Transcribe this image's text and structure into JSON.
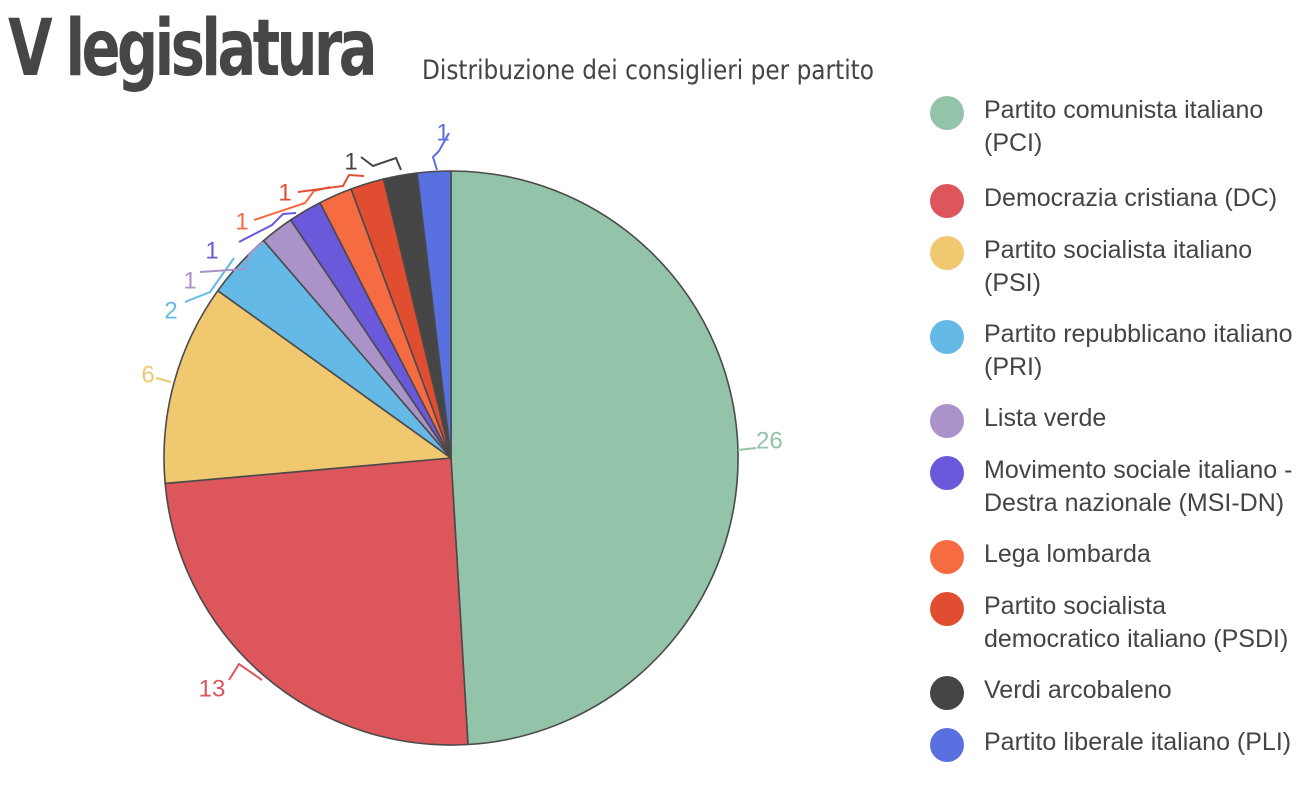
{
  "title": "V legislatura",
  "subtitle": "Distribuzione dei consiglieri per partito",
  "chart_data": {
    "type": "pie",
    "title": "V legislatura",
    "subtitle": "Distribuzione dei consiglieri per partito",
    "legend_position": "right",
    "slices": [
      {
        "label": "Partito comunista italiano (PCI)",
        "value": 26,
        "color": "#93c3a8"
      },
      {
        "label": "Democrazia cristiana (DC)",
        "value": 13,
        "color": "#dc565b"
      },
      {
        "label": "Partito socialista italiano (PSI)",
        "value": 6,
        "color": "#efc870"
      },
      {
        "label": "Partito repubblicano italiano (PRI)",
        "value": 2,
        "color": "#65b9e6"
      },
      {
        "label": "Lista verde",
        "value": 1,
        "color": "#aa93c9"
      },
      {
        "label": "Movimento sociale italiano - Destra nazionale (MSI-DN)",
        "value": 1,
        "color": "#6b59dc"
      },
      {
        "label": "Lega lombarda",
        "value": 1,
        "color": "#f76b43"
      },
      {
        "label": "Partito socialista democratico italiano (PSDI)",
        "value": 1,
        "color": "#e04d31"
      },
      {
        "label": "Verdi arcobaleno",
        "value": 1,
        "color": "#454545"
      },
      {
        "label": "Partito liberale italiano (PLI)",
        "value": 1,
        "color": "#5870e0"
      }
    ]
  }
}
